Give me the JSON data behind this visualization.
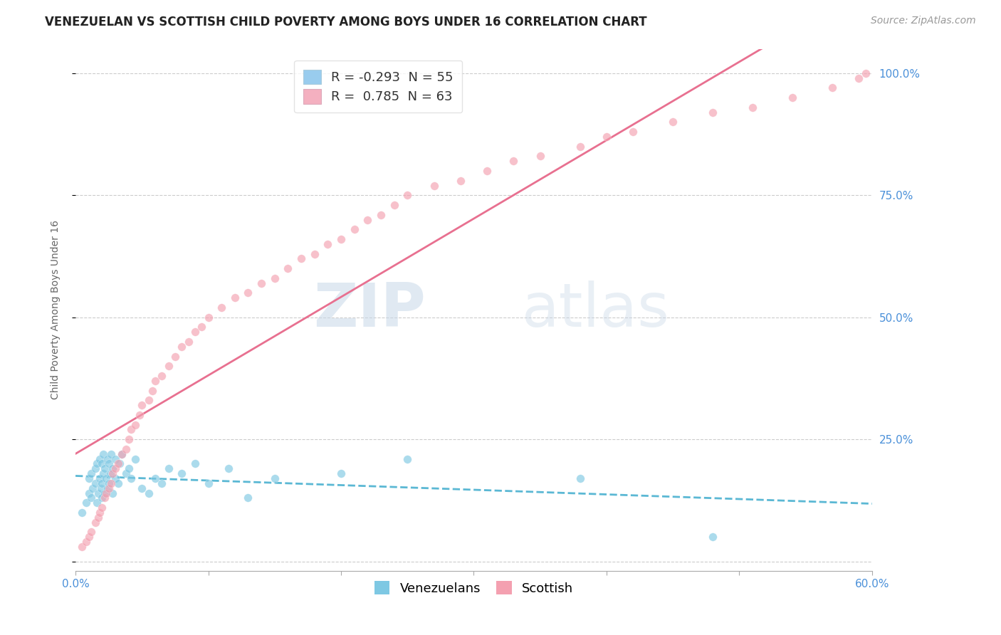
{
  "title": "VENEZUELAN VS SCOTTISH CHILD POVERTY AMONG BOYS UNDER 16 CORRELATION CHART",
  "source": "Source: ZipAtlas.com",
  "ylabel": "Child Poverty Among Boys Under 16",
  "yticks": [
    0.0,
    0.25,
    0.5,
    0.75,
    1.0
  ],
  "ytick_labels": [
    "",
    "25.0%",
    "50.0%",
    "75.0%",
    "100.0%"
  ],
  "xmin": 0.0,
  "xmax": 0.6,
  "ymin": -0.02,
  "ymax": 1.05,
  "legend_R1": "-0.293",
  "legend_N1": "55",
  "legend_R2": " 0.785",
  "legend_N2": "63",
  "label1": "Venezuelans",
  "label2": "Scottish",
  "watermark_top": "ZIP",
  "watermark_bot": "atlas",
  "background_color": "#ffffff",
  "scatter_blue_color": "#7ec8e3",
  "scatter_pink_color": "#f4a0b0",
  "scatter_size": 70,
  "scatter_alpha": 0.65,
  "line_blue_color": "#5bb8d4",
  "line_pink_color": "#e87090",
  "legend_blue": "#99ccee",
  "legend_pink": "#f4b0c0",
  "title_fontsize": 12,
  "source_fontsize": 10,
  "axis_label_fontsize": 10,
  "tick_fontsize": 11,
  "venezuelan_x": [
    0.005,
    0.008,
    0.01,
    0.01,
    0.012,
    0.012,
    0.013,
    0.015,
    0.015,
    0.016,
    0.016,
    0.017,
    0.018,
    0.018,
    0.019,
    0.02,
    0.02,
    0.02,
    0.021,
    0.021,
    0.022,
    0.022,
    0.023,
    0.024,
    0.024,
    0.025,
    0.025,
    0.026,
    0.027,
    0.028,
    0.028,
    0.03,
    0.03,
    0.032,
    0.033,
    0.035,
    0.038,
    0.04,
    0.042,
    0.045,
    0.05,
    0.055,
    0.06,
    0.065,
    0.07,
    0.08,
    0.09,
    0.1,
    0.115,
    0.13,
    0.15,
    0.2,
    0.25,
    0.38,
    0.48
  ],
  "venezuelan_y": [
    0.1,
    0.12,
    0.14,
    0.17,
    0.13,
    0.18,
    0.15,
    0.16,
    0.19,
    0.12,
    0.2,
    0.14,
    0.17,
    0.21,
    0.15,
    0.13,
    0.16,
    0.2,
    0.18,
    0.22,
    0.14,
    0.19,
    0.17,
    0.15,
    0.21,
    0.16,
    0.2,
    0.18,
    0.22,
    0.14,
    0.19,
    0.17,
    0.21,
    0.16,
    0.2,
    0.22,
    0.18,
    0.19,
    0.17,
    0.21,
    0.15,
    0.14,
    0.17,
    0.16,
    0.19,
    0.18,
    0.2,
    0.16,
    0.19,
    0.13,
    0.17,
    0.18,
    0.21,
    0.17,
    0.05
  ],
  "scottish_x": [
    0.005,
    0.008,
    0.01,
    0.012,
    0.015,
    0.017,
    0.018,
    0.02,
    0.022,
    0.023,
    0.025,
    0.027,
    0.028,
    0.03,
    0.032,
    0.035,
    0.038,
    0.04,
    0.042,
    0.045,
    0.048,
    0.05,
    0.055,
    0.058,
    0.06,
    0.065,
    0.07,
    0.075,
    0.08,
    0.085,
    0.09,
    0.095,
    0.1,
    0.11,
    0.12,
    0.13,
    0.14,
    0.15,
    0.16,
    0.17,
    0.18,
    0.19,
    0.2,
    0.21,
    0.22,
    0.23,
    0.24,
    0.25,
    0.27,
    0.29,
    0.31,
    0.33,
    0.35,
    0.38,
    0.4,
    0.42,
    0.45,
    0.48,
    0.51,
    0.54,
    0.57,
    0.59,
    0.595
  ],
  "scottish_y": [
    0.03,
    0.04,
    0.05,
    0.06,
    0.08,
    0.09,
    0.1,
    0.11,
    0.13,
    0.14,
    0.15,
    0.16,
    0.18,
    0.19,
    0.2,
    0.22,
    0.23,
    0.25,
    0.27,
    0.28,
    0.3,
    0.32,
    0.33,
    0.35,
    0.37,
    0.38,
    0.4,
    0.42,
    0.44,
    0.45,
    0.47,
    0.48,
    0.5,
    0.52,
    0.54,
    0.55,
    0.57,
    0.58,
    0.6,
    0.62,
    0.63,
    0.65,
    0.66,
    0.68,
    0.7,
    0.71,
    0.73,
    0.75,
    0.77,
    0.78,
    0.8,
    0.82,
    0.83,
    0.85,
    0.87,
    0.88,
    0.9,
    0.92,
    0.93,
    0.95,
    0.97,
    0.99,
    1.0
  ]
}
